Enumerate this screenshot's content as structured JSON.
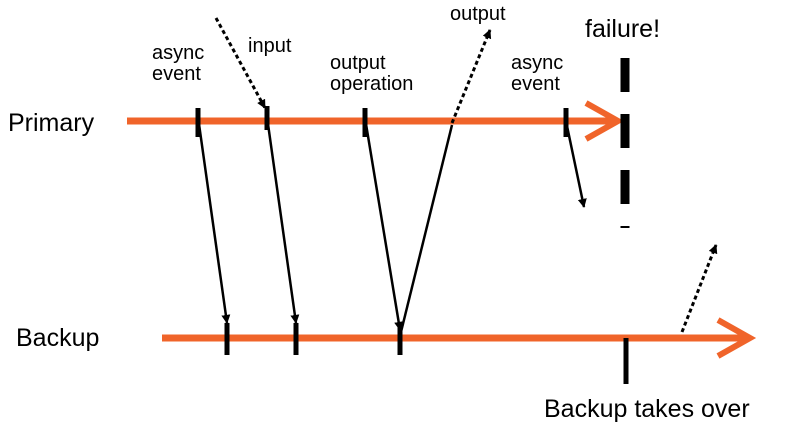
{
  "timelines": {
    "primary_label": "Primary",
    "backup_label": "Backup"
  },
  "events": {
    "async_event_1": [
      "async",
      "event"
    ],
    "input": "input",
    "output_operation": [
      "output",
      "operation"
    ],
    "output": "output",
    "async_event_2": [
      "async",
      "event"
    ],
    "failure": "failure!",
    "backup_takes_over": "Backup takes over"
  },
  "colors": {
    "timeline": "#f0642a",
    "ink": "#000000",
    "background": "#ffffff"
  }
}
